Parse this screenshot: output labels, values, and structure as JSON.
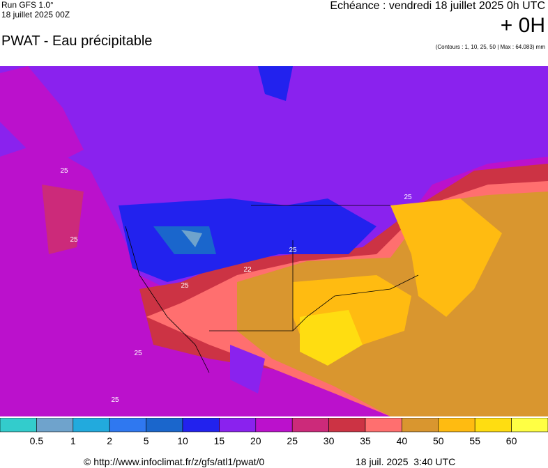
{
  "header": {
    "run": "Run GFS 1.0°",
    "date": "18 juillet 2025 00Z",
    "title": "PWAT - Eau précipitable",
    "echeance": "Echéance : vendredi 18 juillet 2025 0h UTC",
    "offset": "+ 0H",
    "contours": "(Contours : 1, 10, 25, 50 | Max : 64.083) mm"
  },
  "map": {
    "contour_labels": [
      "25",
      "25",
      "25",
      "25",
      "22",
      "25",
      "25",
      "25"
    ]
  },
  "legend": {
    "colors": [
      "#33cccc",
      "#6fa3cc",
      "#22aadd",
      "#2f78f0",
      "#1a66cc",
      "#2222ee",
      "#8a22ee",
      "#bb11cc",
      "#cc2a7a",
      "#cc3344",
      "#ff6f6f",
      "#d9962f",
      "#ffbb11",
      "#ffdd11",
      "#ffff44"
    ],
    "labels": [
      "0.5",
      "1",
      "2",
      "5",
      "10",
      "15",
      "20",
      "25",
      "30",
      "35",
      "40",
      "50",
      "55",
      "60"
    ]
  },
  "footer": {
    "source": "© http://www.infoclimat.fr/z/gfs/atl1/pwat/0",
    "time": "18 juil. 2025  3:40 UTC"
  }
}
